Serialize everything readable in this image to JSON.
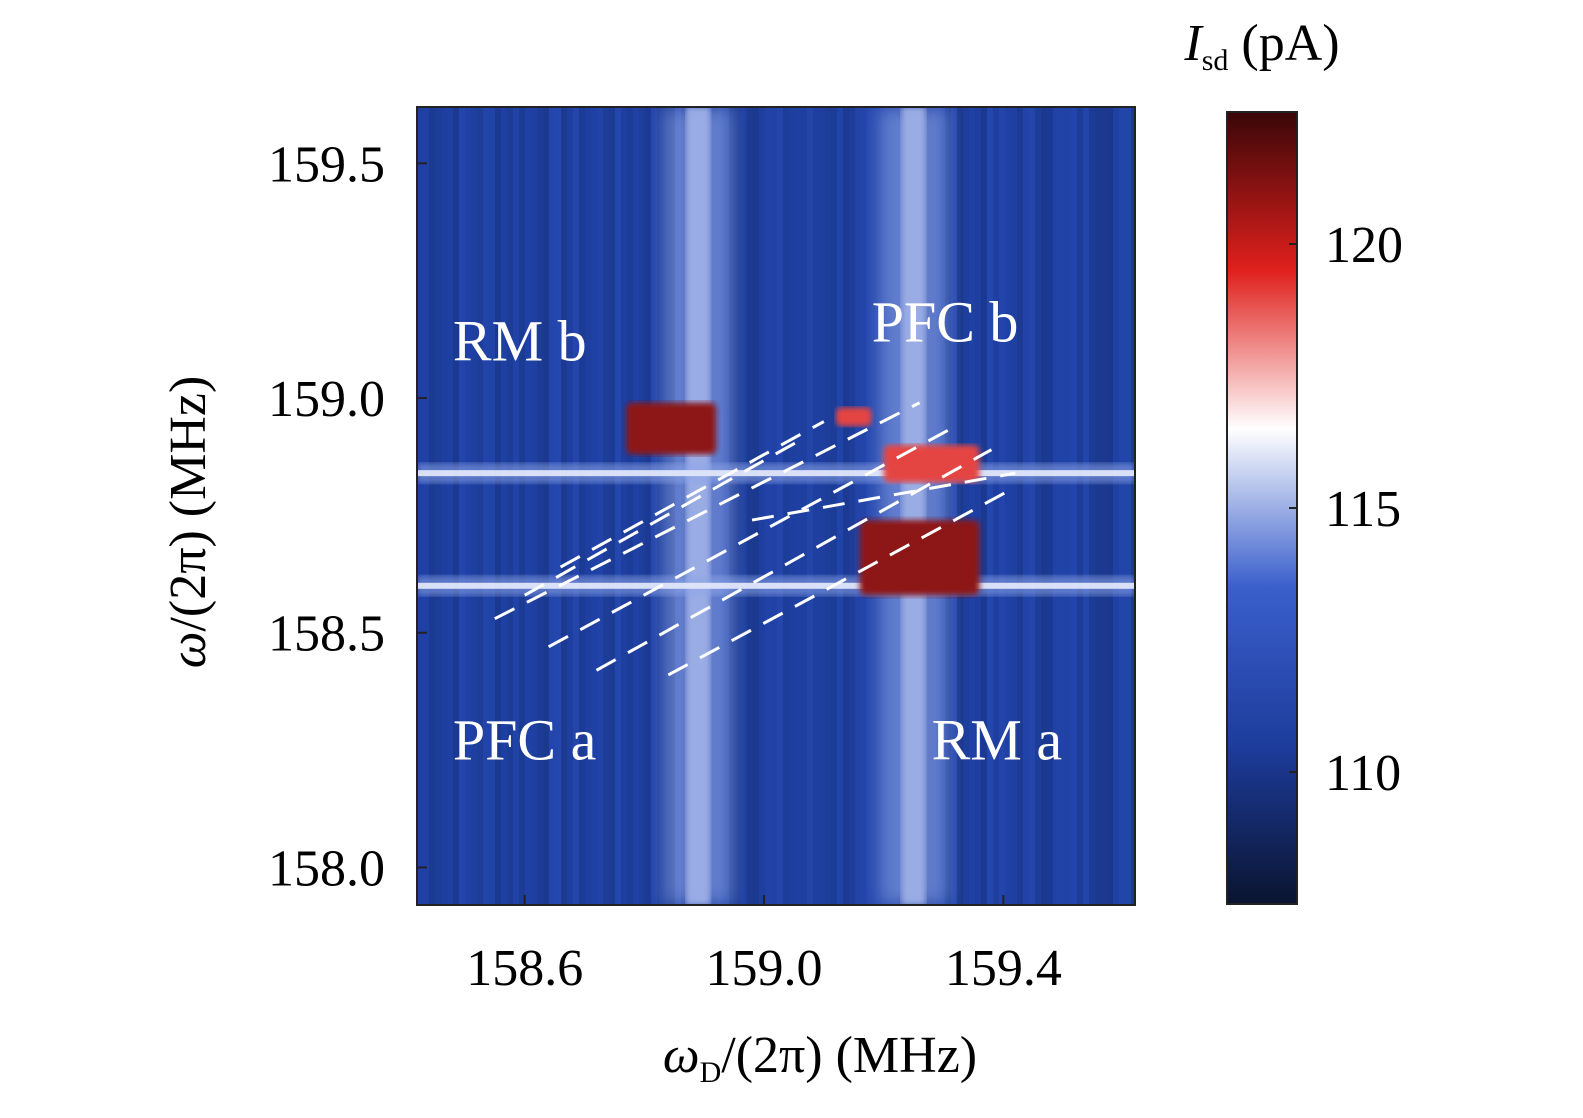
{
  "chart_data": {
    "type": "heatmap",
    "title": "",
    "xlabel": {
      "symbol": "ω",
      "sub": "D",
      "rest": "/(2π) (MHz)"
    },
    "ylabel": {
      "symbol": "ω",
      "rest": "/(2π) (MHz)"
    },
    "xlim": [
      158.42,
      159.62
    ],
    "ylim": [
      157.92,
      159.62
    ],
    "x_ticks": [
      {
        "value": 158.6,
        "label": "158.6"
      },
      {
        "value": 159.0,
        "label": "159.0"
      },
      {
        "value": 159.4,
        "label": "159.4"
      }
    ],
    "y_ticks": [
      {
        "value": 158.0,
        "label": "158.0"
      },
      {
        "value": 158.5,
        "label": "158.5"
      },
      {
        "value": 159.0,
        "label": "159.0"
      },
      {
        "value": 159.5,
        "label": "159.5"
      }
    ],
    "colorbar": {
      "label": {
        "symbol": "I",
        "sub": "sd",
        "rest": " (pA)"
      },
      "range": [
        107.5,
        122.5
      ],
      "ticks": [
        {
          "value": 110,
          "label": "110"
        },
        {
          "value": 115,
          "label": "115"
        },
        {
          "value": 120,
          "label": "120"
        }
      ],
      "colormap": [
        "#0a1430",
        "#1d3c9c",
        "#3a5fcc",
        "#ffffff",
        "#e0201c",
        "#3a0608"
      ]
    },
    "annotations": [
      {
        "id": "rm-b",
        "text": "RM b",
        "x": 158.48,
        "y": 159.08
      },
      {
        "id": "pfc-b",
        "text": "PFC b",
        "x": 159.18,
        "y": 159.12
      },
      {
        "id": "pfc-a",
        "text": "PFC a",
        "x": 158.48,
        "y": 158.23
      },
      {
        "id": "rm-a",
        "text": "RM a",
        "x": 159.28,
        "y": 158.23
      }
    ],
    "features": {
      "vertical_resonances_x": [
        158.89,
        159.25
      ],
      "horizontal_resonances_y": [
        158.84,
        158.6
      ],
      "background_pA": 110.5,
      "resonance_line_pA": 115,
      "peak_regions": [
        {
          "x": [
            158.77,
            158.92
          ],
          "y": [
            158.88,
            158.99
          ],
          "pA": 121
        },
        {
          "x": [
            159.16,
            159.36
          ],
          "y": [
            158.58,
            158.74
          ],
          "pA": 121
        },
        {
          "x": [
            159.2,
            159.36
          ],
          "y": [
            158.82,
            158.9
          ],
          "pA": 119
        },
        {
          "x": [
            159.12,
            159.18
          ],
          "y": [
            158.94,
            158.98
          ],
          "pA": 119
        }
      ],
      "dashed_guide_lines": [
        {
          "from": [
            158.55,
            158.53
          ],
          "to": [
            159.26,
            158.99
          ]
        },
        {
          "from": [
            158.64,
            158.47
          ],
          "to": [
            159.32,
            158.94
          ]
        },
        {
          "from": [
            158.72,
            158.42
          ],
          "to": [
            159.38,
            158.89
          ]
        },
        {
          "from": [
            158.84,
            158.41
          ],
          "to": [
            159.42,
            158.81
          ]
        },
        {
          "from": [
            158.6,
            158.58
          ],
          "to": [
            159.06,
            158.91
          ]
        },
        {
          "from": [
            158.66,
            158.64
          ],
          "to": [
            159.1,
            158.95
          ]
        },
        {
          "from": [
            158.98,
            158.74
          ],
          "to": [
            159.42,
            158.84
          ]
        }
      ]
    }
  }
}
